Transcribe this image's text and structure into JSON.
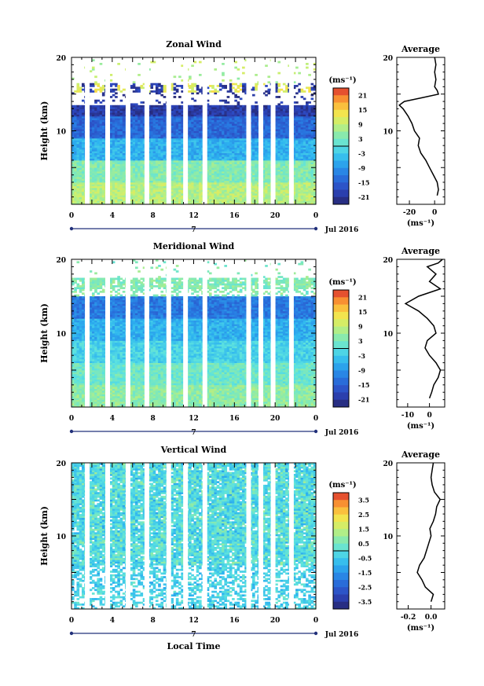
{
  "chart_data": [
    {
      "type": "heatmap",
      "title": "Zonal Wind",
      "ylabel": "Height (km)",
      "ylim": [
        0,
        20
      ],
      "yticks": [
        "10",
        "20"
      ],
      "xlim": [
        0,
        24
      ],
      "xticks": [
        "0",
        "4",
        "8",
        "12",
        "16",
        "20",
        "0"
      ],
      "date_day": "7",
      "date_month": "Jul 2016",
      "colorbar": {
        "unit": "(ms⁻¹)",
        "ticks": [
          "21",
          "15",
          "9",
          "3",
          "-3",
          "-9",
          "-15",
          "-21"
        ],
        "range": [
          -24,
          24
        ]
      },
      "gap_hours": [
        1.55,
        3.55,
        5.55,
        7.4,
        9.55,
        11.2,
        13.1,
        17.4,
        18.6,
        19.8,
        21.6
      ],
      "profile": {
        "title": "Average",
        "xlabel": "(ms⁻¹)",
        "xticks": [
          "-20",
          "0"
        ],
        "yticks": [
          "10",
          "20"
        ],
        "xlim": [
          -30,
          8
        ],
        "heights": [
          1.2,
          2,
          3,
          4,
          5,
          6,
          7,
          8,
          9,
          10,
          11,
          12,
          13,
          13.5,
          14,
          14.5,
          15,
          15.5,
          16,
          17,
          18,
          19,
          20
        ],
        "values": [
          2,
          3,
          2,
          -1,
          -4,
          -7,
          -11,
          -13,
          -12,
          -16,
          -18,
          -21,
          -25,
          -28,
          -24,
          -10,
          3,
          2,
          0,
          1,
          0,
          1,
          0
        ]
      }
    },
    {
      "type": "heatmap",
      "title": "Meridional Wind",
      "ylabel": "Height (km)",
      "ylim": [
        0,
        20
      ],
      "yticks": [
        "10",
        "20"
      ],
      "xlim": [
        0,
        24
      ],
      "xticks": [
        "0",
        "4",
        "8",
        "12",
        "16",
        "20",
        "0"
      ],
      "date_day": "7",
      "date_month": "Jul 2016",
      "colorbar": {
        "unit": "(ms⁻¹)",
        "ticks": [
          "21",
          "15",
          "9",
          "3",
          "-3",
          "-9",
          "-15",
          "-21"
        ],
        "range": [
          -24,
          24
        ]
      },
      "gap_hours": [
        1.55,
        3.55,
        5.55,
        7.4,
        9.55,
        11.2,
        13.1,
        17.4,
        18.6,
        19.8,
        21.6
      ],
      "profile": {
        "title": "Average",
        "xlabel": "(ms⁻¹)",
        "xticks": [
          "-10",
          "0"
        ],
        "yticks": [
          "10",
          "20"
        ],
        "xlim": [
          -15,
          7
        ],
        "heights": [
          1.2,
          2,
          3,
          4,
          5,
          6,
          7,
          8,
          9,
          10,
          11,
          12,
          13,
          13.5,
          14,
          15,
          16,
          17,
          18,
          19,
          19.5,
          20
        ],
        "values": [
          0,
          1,
          2,
          4,
          5,
          3,
          0,
          -2,
          -1,
          3,
          2,
          -1,
          -5,
          -8,
          -11,
          -5,
          5,
          0,
          3,
          -1,
          4,
          6
        ]
      }
    },
    {
      "type": "heatmap",
      "title": "Vertical Wind",
      "ylabel": "Height (km)",
      "ylim": [
        0,
        20
      ],
      "yticks": [
        "10",
        "20"
      ],
      "xlim": [
        0,
        24
      ],
      "xticks": [
        "0",
        "4",
        "8",
        "12",
        "16",
        "20",
        "0"
      ],
      "xlabel": "Local Time",
      "date_day": "7",
      "date_month": "Jul 2016",
      "colorbar": {
        "unit": "(ms⁻¹)",
        "ticks": [
          "3.5",
          "2.5",
          "1.5",
          "0.5",
          "-0.5",
          "-1.5",
          "-2.5",
          "-3.5"
        ],
        "range": [
          -4,
          4
        ]
      },
      "gap_hours": [
        1.55,
        3.55,
        5.55,
        7.4,
        9.55,
        11.2,
        13.1,
        17.4,
        18.6,
        19.8,
        21.6
      ],
      "profile": {
        "title": "Average",
        "xlabel": "(ms⁻¹)",
        "xticks": [
          "-0.2",
          "0.0"
        ],
        "yticks": [
          "10",
          "20"
        ],
        "xlim": [
          -0.3,
          0.12
        ],
        "heights": [
          1,
          2,
          3,
          4,
          5,
          6,
          7,
          8,
          9,
          10,
          11,
          12,
          13,
          14,
          15,
          16,
          17,
          18,
          19,
          20
        ],
        "values": [
          0.0,
          0.02,
          -0.05,
          -0.08,
          -0.12,
          -0.1,
          -0.06,
          -0.04,
          -0.02,
          0.0,
          -0.01,
          0.02,
          0.04,
          0.05,
          0.08,
          0.03,
          0.01,
          0.0,
          0.01,
          0.02
        ]
      }
    }
  ]
}
